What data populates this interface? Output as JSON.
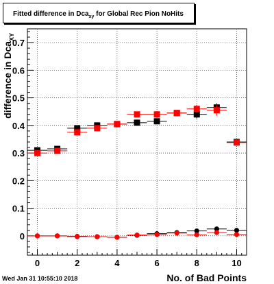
{
  "title": {
    "pre": "Fitted difference in Dca",
    "sub": "xy",
    "post": " for Global Rec Pion NoHits"
  },
  "datestamp": "Wed Jan 31 10:55:10 2018",
  "chart_data": {
    "type": "scatter",
    "xlabel": "No. of Bad Points",
    "ylabel": "difference in Dca",
    "ylabel_sub": "XY",
    "xlim": [
      -0.5,
      10.5
    ],
    "ylim": [
      -0.07,
      0.75
    ],
    "xticks": [
      0,
      2,
      4,
      6,
      8,
      10
    ],
    "yticks": [
      0,
      0.1,
      0.2,
      0.3,
      0.4,
      0.5,
      0.6,
      0.7
    ],
    "ytick_labels": [
      "0",
      "0.1",
      "0.2",
      "0.3",
      "0.4",
      "0.5",
      "0.6",
      "0.7"
    ],
    "grid": true,
    "series": [
      {
        "color": "#000000",
        "marker": "square",
        "x": [
          0,
          1,
          2,
          3,
          4,
          5,
          6,
          7,
          8,
          9,
          10
        ],
        "y": [
          0.31,
          0.315,
          0.39,
          0.4,
          0.405,
          0.41,
          0.415,
          0.445,
          0.44,
          0.465,
          0.34
        ],
        "yerr": [
          0.005,
          0.005,
          0.008,
          0.008,
          0.006,
          0.008,
          0.01,
          0.01,
          0.015,
          0.015,
          0.01
        ]
      },
      {
        "color": "#ff0000",
        "marker": "square",
        "x": [
          0,
          1,
          2,
          3,
          4,
          5,
          6,
          7,
          8,
          9,
          10
        ],
        "y": [
          0.3,
          0.308,
          0.375,
          0.39,
          0.405,
          0.44,
          0.44,
          0.445,
          0.46,
          0.455,
          0.338
        ],
        "yerr": [
          0.005,
          0.005,
          0.01,
          0.008,
          0.008,
          0.01,
          0.012,
          0.01,
          0.015,
          0.02,
          0.008
        ]
      },
      {
        "color": "#000000",
        "marker": "circle",
        "x": [
          0,
          1,
          2,
          3,
          4,
          5,
          6,
          7,
          8,
          9,
          10
        ],
        "y": [
          0.0,
          0.0,
          -0.002,
          -0.003,
          -0.005,
          0.002,
          0.008,
          0.012,
          0.018,
          0.025,
          0.02
        ],
        "yerr": [
          0.002,
          0.002,
          0.002,
          0.002,
          0.003,
          0.003,
          0.004,
          0.004,
          0.006,
          0.008,
          0.006
        ]
      },
      {
        "color": "#ff0000",
        "marker": "circle",
        "x": [
          0,
          1,
          2,
          3,
          4,
          5,
          6,
          7,
          8,
          9,
          10
        ],
        "y": [
          0.0,
          0.0,
          -0.003,
          -0.003,
          -0.005,
          0.003,
          0.005,
          0.01,
          0.004,
          0.012,
          0.005
        ],
        "yerr": [
          0.002,
          0.002,
          0.002,
          0.002,
          0.003,
          0.003,
          0.004,
          0.004,
          0.005,
          0.006,
          0.005
        ]
      }
    ]
  }
}
